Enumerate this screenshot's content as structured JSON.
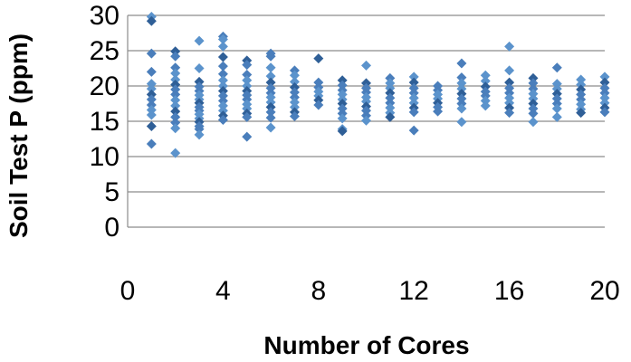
{
  "chart_data": {
    "type": "scatter",
    "title": "",
    "xlabel": "Number of Cores",
    "ylabel": "Soil Test P  (ppm)",
    "xlim": [
      0,
      20
    ],
    "ylim": [
      0,
      30
    ],
    "xticks": [
      0,
      4,
      8,
      12,
      16,
      20
    ],
    "yticks": [
      0,
      5,
      10,
      15,
      20,
      25,
      30
    ],
    "grid": "horizontal",
    "legend": "none",
    "marker": "diamond",
    "colors": {
      "point": "#4a7ebb",
      "point_dark": "#2f5f97",
      "point_light": "#5b93cc",
      "grid": "#8c8c8c"
    },
    "series": [
      {
        "points": [
          [
            1,
            29.8
          ],
          [
            1,
            29.2
          ],
          [
            1,
            24.6
          ],
          [
            1,
            22.0
          ],
          [
            1,
            20.3
          ],
          [
            1,
            19.6
          ],
          [
            1,
            18.8
          ],
          [
            1,
            18.1
          ],
          [
            1,
            17.3
          ],
          [
            1,
            16.6
          ],
          [
            1,
            15.9
          ],
          [
            1,
            14.3
          ],
          [
            1,
            11.8
          ],
          [
            2,
            24.9
          ],
          [
            2,
            24.2
          ],
          [
            2,
            22.6
          ],
          [
            2,
            21.8
          ],
          [
            2,
            20.9
          ],
          [
            2,
            20.2
          ],
          [
            2,
            19.5
          ],
          [
            2,
            18.8
          ],
          [
            2,
            18.0
          ],
          [
            2,
            17.2
          ],
          [
            2,
            16.4
          ],
          [
            2,
            15.6
          ],
          [
            2,
            14.8
          ],
          [
            2,
            14.0
          ],
          [
            2,
            10.5
          ],
          [
            3,
            26.4
          ],
          [
            3,
            22.5
          ],
          [
            3,
            20.6
          ],
          [
            3,
            19.9
          ],
          [
            3,
            19.3
          ],
          [
            3,
            18.7
          ],
          [
            3,
            18.1
          ],
          [
            3,
            17.6
          ],
          [
            3,
            17.0
          ],
          [
            3,
            16.5
          ],
          [
            3,
            16.0
          ],
          [
            3,
            15.4
          ],
          [
            3,
            14.9
          ],
          [
            3,
            14.3
          ],
          [
            3,
            13.9
          ],
          [
            3,
            13.1
          ],
          [
            4,
            27.0
          ],
          [
            4,
            26.6
          ],
          [
            4,
            25.6
          ],
          [
            4,
            24.1
          ],
          [
            4,
            22.8
          ],
          [
            4,
            21.7
          ],
          [
            4,
            20.8
          ],
          [
            4,
            20.0
          ],
          [
            4,
            19.3
          ],
          [
            4,
            18.6
          ],
          [
            4,
            17.9
          ],
          [
            4,
            17.2
          ],
          [
            4,
            16.5
          ],
          [
            4,
            15.8
          ],
          [
            4,
            15.2
          ],
          [
            5,
            23.6
          ],
          [
            5,
            23.0
          ],
          [
            5,
            21.6
          ],
          [
            5,
            20.8
          ],
          [
            5,
            20.0
          ],
          [
            5,
            19.3
          ],
          [
            5,
            18.7
          ],
          [
            5,
            18.1
          ],
          [
            5,
            17.4
          ],
          [
            5,
            16.8
          ],
          [
            5,
            16.1
          ],
          [
            5,
            15.6
          ],
          [
            5,
            12.8
          ],
          [
            6,
            24.6
          ],
          [
            6,
            24.2
          ],
          [
            6,
            22.6
          ],
          [
            6,
            21.4
          ],
          [
            6,
            20.5
          ],
          [
            6,
            19.7
          ],
          [
            6,
            19.0
          ],
          [
            6,
            18.4
          ],
          [
            6,
            17.7
          ],
          [
            6,
            17.0
          ],
          [
            6,
            16.3
          ],
          [
            6,
            15.5
          ],
          [
            6,
            14.1
          ],
          [
            7,
            22.2
          ],
          [
            7,
            21.5
          ],
          [
            7,
            20.6
          ],
          [
            7,
            19.8
          ],
          [
            7,
            19.1
          ],
          [
            7,
            18.4
          ],
          [
            7,
            17.7
          ],
          [
            7,
            17.0
          ],
          [
            7,
            16.3
          ],
          [
            7,
            15.7
          ],
          [
            8,
            23.9
          ],
          [
            8,
            20.5
          ],
          [
            8,
            19.8
          ],
          [
            8,
            19.2
          ],
          [
            8,
            18.6
          ],
          [
            8,
            18.0
          ],
          [
            8,
            17.3
          ],
          [
            9,
            20.8
          ],
          [
            9,
            20.1
          ],
          [
            9,
            19.4
          ],
          [
            9,
            18.8
          ],
          [
            9,
            18.1
          ],
          [
            9,
            17.5
          ],
          [
            9,
            16.8
          ],
          [
            9,
            16.1
          ],
          [
            9,
            15.4
          ],
          [
            9,
            13.9
          ],
          [
            9,
            13.6
          ],
          [
            10,
            22.9
          ],
          [
            10,
            20.4
          ],
          [
            10,
            19.7
          ],
          [
            10,
            19.1
          ],
          [
            10,
            18.4
          ],
          [
            10,
            17.8
          ],
          [
            10,
            17.1
          ],
          [
            10,
            16.5
          ],
          [
            10,
            15.8
          ],
          [
            10,
            15.1
          ],
          [
            11,
            21.1
          ],
          [
            11,
            20.4
          ],
          [
            11,
            19.7
          ],
          [
            11,
            19.0
          ],
          [
            11,
            18.3
          ],
          [
            11,
            17.6
          ],
          [
            11,
            16.9
          ],
          [
            11,
            16.2
          ],
          [
            11,
            15.6
          ],
          [
            12,
            21.3
          ],
          [
            12,
            20.5
          ],
          [
            12,
            19.7
          ],
          [
            12,
            19.0
          ],
          [
            12,
            18.3
          ],
          [
            12,
            17.6
          ],
          [
            12,
            16.9
          ],
          [
            12,
            16.3
          ],
          [
            12,
            13.7
          ],
          [
            13,
            20.0
          ],
          [
            13,
            19.4
          ],
          [
            13,
            18.8
          ],
          [
            13,
            18.2
          ],
          [
            13,
            17.6
          ],
          [
            13,
            17.0
          ],
          [
            13,
            16.4
          ],
          [
            14,
            23.2
          ],
          [
            14,
            21.2
          ],
          [
            14,
            20.4
          ],
          [
            14,
            19.6
          ],
          [
            14,
            18.9
          ],
          [
            14,
            18.2
          ],
          [
            14,
            17.5
          ],
          [
            14,
            16.8
          ],
          [
            14,
            14.9
          ],
          [
            15,
            21.5
          ],
          [
            15,
            20.7
          ],
          [
            15,
            19.9
          ],
          [
            15,
            19.2
          ],
          [
            15,
            18.6
          ],
          [
            15,
            17.9
          ],
          [
            15,
            17.2
          ],
          [
            16,
            25.6
          ],
          [
            16,
            22.2
          ],
          [
            16,
            20.5
          ],
          [
            16,
            19.7
          ],
          [
            16,
            19.0
          ],
          [
            16,
            18.3
          ],
          [
            16,
            17.6
          ],
          [
            16,
            16.9
          ],
          [
            16,
            16.2
          ],
          [
            17,
            21.1
          ],
          [
            17,
            20.4
          ],
          [
            17,
            19.6
          ],
          [
            17,
            18.9
          ],
          [
            17,
            18.2
          ],
          [
            17,
            17.5
          ],
          [
            17,
            16.8
          ],
          [
            17,
            16.1
          ],
          [
            17,
            14.9
          ],
          [
            18,
            22.6
          ],
          [
            18,
            20.3
          ],
          [
            18,
            19.6
          ],
          [
            18,
            18.9
          ],
          [
            18,
            18.2
          ],
          [
            18,
            17.5
          ],
          [
            18,
            16.8
          ],
          [
            18,
            15.6
          ],
          [
            19,
            20.9
          ],
          [
            19,
            20.2
          ],
          [
            19,
            19.5
          ],
          [
            19,
            18.8
          ],
          [
            19,
            18.1
          ],
          [
            19,
            17.4
          ],
          [
            19,
            16.7
          ],
          [
            19,
            16.2
          ],
          [
            20,
            21.3
          ],
          [
            20,
            20.5
          ],
          [
            20,
            19.7
          ],
          [
            20,
            19.0
          ],
          [
            20,
            18.3
          ],
          [
            20,
            17.6
          ],
          [
            20,
            16.9
          ],
          [
            20,
            16.3
          ]
        ]
      }
    ]
  }
}
